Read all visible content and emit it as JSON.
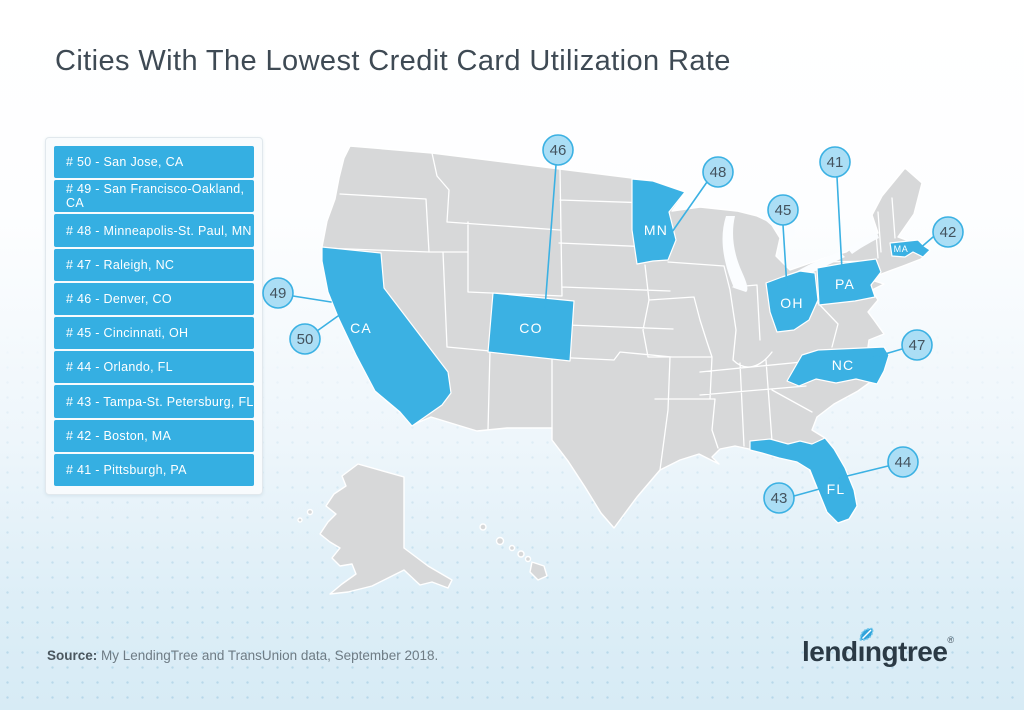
{
  "title": "Cities With The Lowest Credit Card Utilization Rate",
  "legend": {
    "items": [
      "# 50 - San Jose, CA",
      "# 49 - San Francisco-Oakland, CA",
      "# 48 - Minneapolis-St. Paul, MN",
      "# 47 - Raleigh, NC",
      "# 46 - Denver, CO",
      "# 45 - Cincinnati, OH",
      "# 44 - Orlando, FL",
      "# 43 - Tampa-St. Petersburg, FL",
      "# 42 - Boston, MA",
      "# 41 -  Pittsburgh, PA"
    ]
  },
  "map": {
    "state_labels": [
      "CA",
      "CO",
      "MN",
      "OH",
      "PA",
      "NC",
      "FL",
      "MA"
    ],
    "callouts": [
      {
        "number": "50",
        "target": "CA"
      },
      {
        "number": "49",
        "target": "CA"
      },
      {
        "number": "48",
        "target": "MN"
      },
      {
        "number": "47",
        "target": "NC"
      },
      {
        "number": "46",
        "target": "CO"
      },
      {
        "number": "45",
        "target": "OH"
      },
      {
        "number": "44",
        "target": "FL"
      },
      {
        "number": "43",
        "target": "FL"
      },
      {
        "number": "42",
        "target": "MA"
      },
      {
        "number": "41",
        "target": "PA"
      }
    ],
    "highlighted_states": [
      "California",
      "Colorado",
      "Minnesota",
      "Ohio",
      "Pennsylvania",
      "North Carolina",
      "Florida",
      "Massachusetts"
    ]
  },
  "source": {
    "label": "Source:",
    "text": " My LendingTree and TransUnion data, September 2018."
  },
  "logo": {
    "text_before_leaf": "lend",
    "text_after_leaf": "ıngtree",
    "registered": "®"
  },
  "colors": {
    "highlight_blue": "#3bb1e3",
    "state_gray": "#d7d8d9",
    "callout_fill": "#abdef5",
    "title_text": "#3e4a54",
    "background_bottom": "#d7ebf5"
  }
}
